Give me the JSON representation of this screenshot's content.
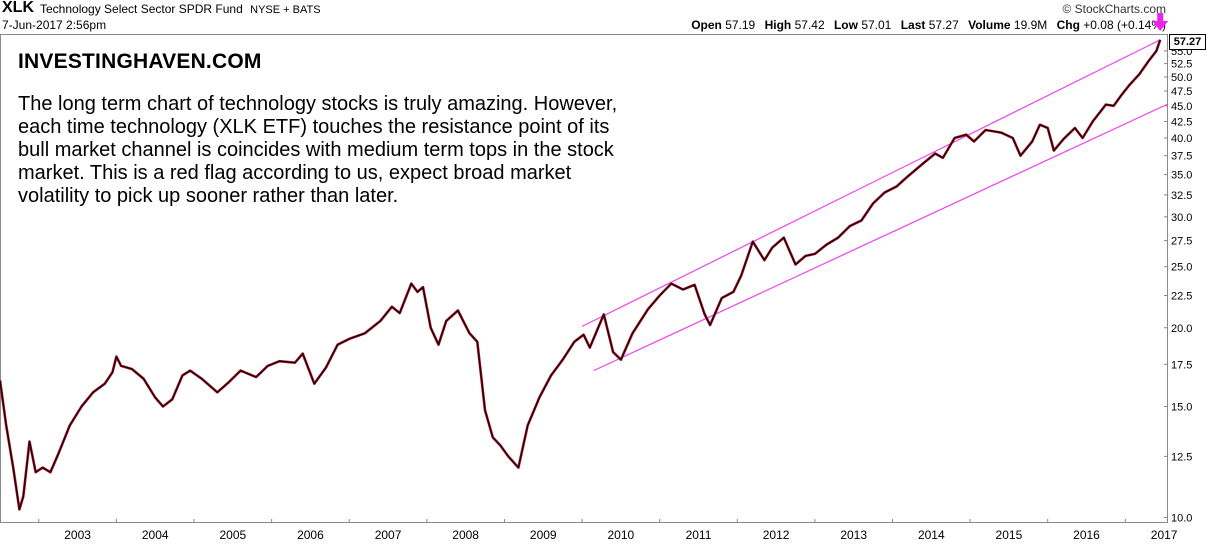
{
  "header": {
    "symbol": "XLK",
    "fund_name": "Technology Select Sector SPDR Fund",
    "exchange": "NYSE + BATS",
    "datetime": "7-Jun-2017 2:56pm",
    "brand": "© StockCharts.com",
    "open_label": "Open",
    "open_value": "57.19",
    "high_label": "High",
    "high_value": "57.42",
    "low_label": "Low",
    "low_value": "57.01",
    "last_label": "Last",
    "last_value": "57.27",
    "volume_label": "Volume",
    "volume_value": "19.9M",
    "chg_label": "Chg",
    "chg_value": "+0.08 (+0.14%)"
  },
  "annotation": {
    "title": "INVESTINGHAVEN.COM",
    "text": "The long term chart of technology stocks is truly amazing. However, each time technology (XLK ETF) touches the resistance point of its bull market channel is coincides with medium term tops in the stock market. This is a red flag according to us, expect broad market volatility to pick up sooner rather than later."
  },
  "colors": {
    "price_line": "#000000",
    "price_shadow": "#b0102a",
    "channel": "#ee44ee",
    "marker": "#ee22ee"
  },
  "chart_data": {
    "type": "line",
    "scale": "log",
    "xlim": [
      2002.5,
      2017.55
    ],
    "ylim": [
      9.8,
      58.5
    ],
    "x_ticks": [
      "2003",
      "2004",
      "2005",
      "2006",
      "2007",
      "2008",
      "2009",
      "2010",
      "2011",
      "2012",
      "2013",
      "2014",
      "2015",
      "2016",
      "2017"
    ],
    "y_ticks": [
      "10.0",
      "12.5",
      "15.0",
      "17.5",
      "20.0",
      "22.5",
      "25.0",
      "27.5",
      "30.0",
      "32.5",
      "35.0",
      "37.5",
      "40.0",
      "42.5",
      "45.0",
      "47.5",
      "50.0",
      "52.5",
      "55.0"
    ],
    "last_price": "57.27",
    "series": [
      {
        "values": [
          [
            2002.5,
            16.5
          ],
          [
            2002.58,
            14.0
          ],
          [
            2002.67,
            12.0
          ],
          [
            2002.75,
            10.3
          ],
          [
            2002.8,
            10.8
          ],
          [
            2002.88,
            13.2
          ],
          [
            2002.96,
            11.8
          ],
          [
            2003.05,
            12.0
          ],
          [
            2003.15,
            11.8
          ],
          [
            2003.25,
            12.6
          ],
          [
            2003.4,
            14.0
          ],
          [
            2003.55,
            15.0
          ],
          [
            2003.7,
            15.8
          ],
          [
            2003.85,
            16.3
          ],
          [
            2003.95,
            17.0
          ],
          [
            2004.0,
            18.0
          ],
          [
            2004.06,
            17.4
          ],
          [
            2004.2,
            17.2
          ],
          [
            2004.35,
            16.6
          ],
          [
            2004.5,
            15.5
          ],
          [
            2004.6,
            15.0
          ],
          [
            2004.72,
            15.4
          ],
          [
            2004.85,
            16.8
          ],
          [
            2004.95,
            17.1
          ],
          [
            2005.1,
            16.6
          ],
          [
            2005.3,
            15.8
          ],
          [
            2005.45,
            16.4
          ],
          [
            2005.6,
            17.1
          ],
          [
            2005.8,
            16.7
          ],
          [
            2005.95,
            17.4
          ],
          [
            2006.1,
            17.7
          ],
          [
            2006.3,
            17.6
          ],
          [
            2006.4,
            18.2
          ],
          [
            2006.55,
            16.3
          ],
          [
            2006.7,
            17.3
          ],
          [
            2006.85,
            18.8
          ],
          [
            2007.0,
            19.2
          ],
          [
            2007.2,
            19.6
          ],
          [
            2007.4,
            20.5
          ],
          [
            2007.55,
            21.6
          ],
          [
            2007.65,
            21.1
          ],
          [
            2007.8,
            23.5
          ],
          [
            2007.88,
            22.8
          ],
          [
            2007.95,
            23.2
          ],
          [
            2008.05,
            20.0
          ],
          [
            2008.15,
            18.8
          ],
          [
            2008.25,
            20.5
          ],
          [
            2008.4,
            21.3
          ],
          [
            2008.55,
            19.6
          ],
          [
            2008.65,
            19.0
          ],
          [
            2008.75,
            14.8
          ],
          [
            2008.85,
            13.4
          ],
          [
            2008.95,
            13.0
          ],
          [
            2009.05,
            12.5
          ],
          [
            2009.18,
            12.0
          ],
          [
            2009.3,
            14.0
          ],
          [
            2009.45,
            15.5
          ],
          [
            2009.6,
            16.8
          ],
          [
            2009.75,
            17.8
          ],
          [
            2009.9,
            19.0
          ],
          [
            2010.02,
            19.5
          ],
          [
            2010.1,
            18.6
          ],
          [
            2010.28,
            21.0
          ],
          [
            2010.4,
            18.3
          ],
          [
            2010.5,
            17.8
          ],
          [
            2010.65,
            19.6
          ],
          [
            2010.85,
            21.4
          ],
          [
            2011.0,
            22.5
          ],
          [
            2011.15,
            23.5
          ],
          [
            2011.3,
            23.0
          ],
          [
            2011.45,
            23.4
          ],
          [
            2011.58,
            21.0
          ],
          [
            2011.65,
            20.2
          ],
          [
            2011.8,
            22.3
          ],
          [
            2011.95,
            22.8
          ],
          [
            2012.05,
            24.2
          ],
          [
            2012.2,
            27.4
          ],
          [
            2012.35,
            25.6
          ],
          [
            2012.45,
            26.8
          ],
          [
            2012.6,
            27.8
          ],
          [
            2012.75,
            25.2
          ],
          [
            2012.88,
            26.0
          ],
          [
            2013.0,
            26.2
          ],
          [
            2013.15,
            27.1
          ],
          [
            2013.3,
            27.8
          ],
          [
            2013.45,
            29.0
          ],
          [
            2013.6,
            29.6
          ],
          [
            2013.75,
            31.5
          ],
          [
            2013.9,
            32.8
          ],
          [
            2014.05,
            33.5
          ],
          [
            2014.2,
            34.8
          ],
          [
            2014.4,
            36.5
          ],
          [
            2014.55,
            37.8
          ],
          [
            2014.65,
            37.2
          ],
          [
            2014.8,
            40.0
          ],
          [
            2014.95,
            40.5
          ],
          [
            2015.05,
            39.5
          ],
          [
            2015.2,
            41.2
          ],
          [
            2015.4,
            40.8
          ],
          [
            2015.55,
            40.0
          ],
          [
            2015.65,
            37.5
          ],
          [
            2015.8,
            39.5
          ],
          [
            2015.9,
            42.0
          ],
          [
            2016.0,
            41.5
          ],
          [
            2016.08,
            38.2
          ],
          [
            2016.2,
            39.8
          ],
          [
            2016.35,
            41.5
          ],
          [
            2016.45,
            40.0
          ],
          [
            2016.58,
            42.5
          ],
          [
            2016.75,
            45.2
          ],
          [
            2016.85,
            45.0
          ],
          [
            2016.95,
            46.8
          ],
          [
            2017.05,
            48.5
          ],
          [
            2017.18,
            50.5
          ],
          [
            2017.3,
            53.0
          ],
          [
            2017.4,
            55.0
          ],
          [
            2017.45,
            57.27
          ]
        ]
      }
    ],
    "channel_lines": [
      {
        "from": [
          2010.0,
          20.1
        ],
        "to": [
          2017.45,
          57.27
        ]
      },
      {
        "from": [
          2010.15,
          17.1
        ],
        "to": [
          2017.55,
          45.3
        ]
      }
    ]
  }
}
